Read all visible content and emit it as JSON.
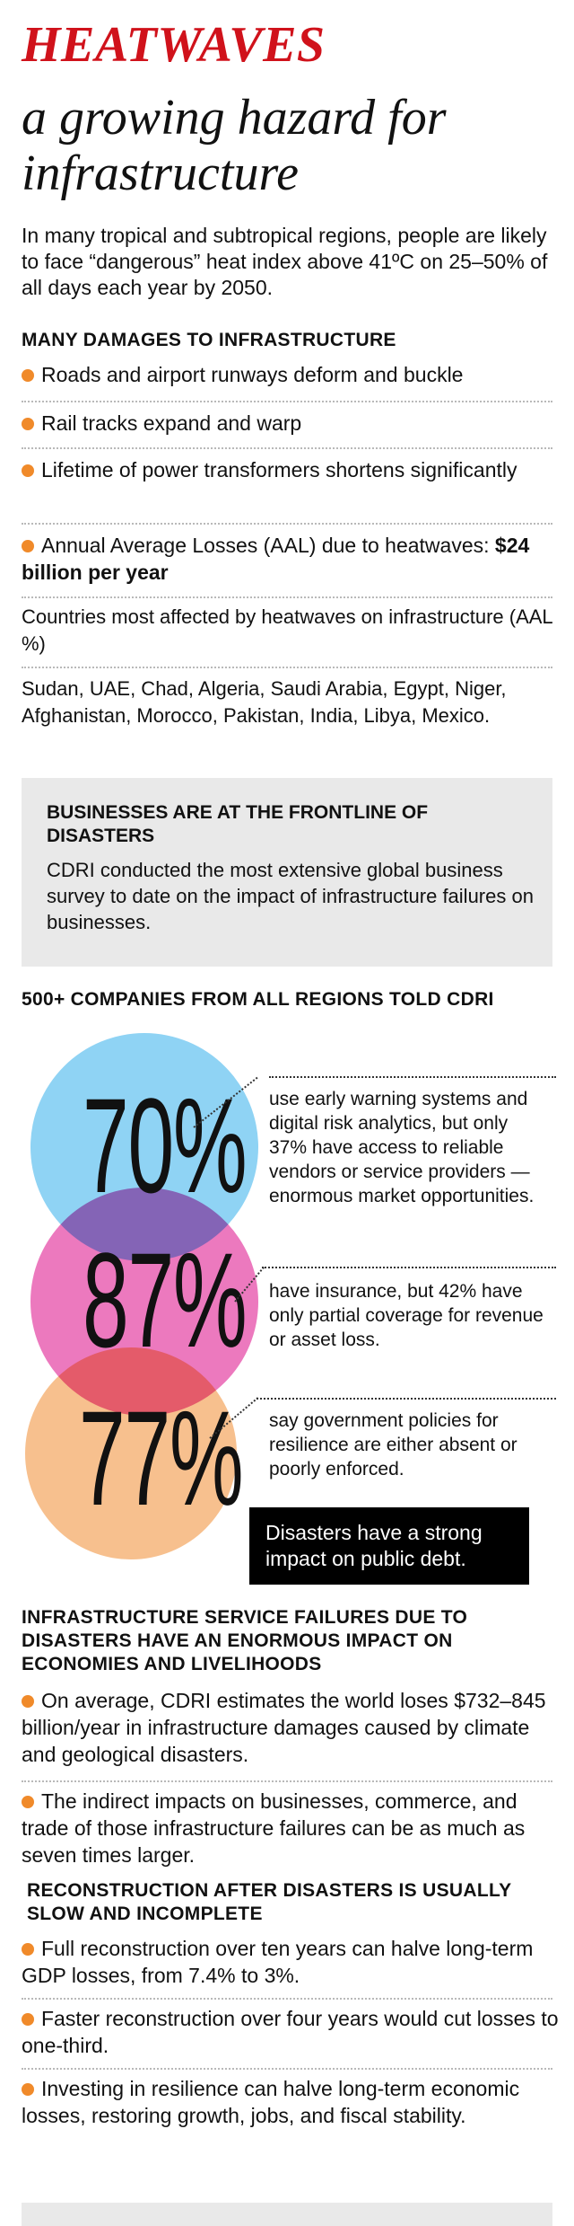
{
  "title": {
    "red": "HEATWAVES",
    "black": "a growing hazard for infrastructure"
  },
  "intro": "In many tropical and subtropical regions, people are likely to face “dangerous” heat index above 41ºC on 25–50% of all days each year by 2050.",
  "damages": {
    "heading": "MANY DAMAGES TO INFRASTRUCTURE",
    "items": [
      "Roads and airport runways deform and buckle",
      "Rail tracks expand and warp",
      "Lifetime of power transformers shortens significantly"
    ],
    "aal_text": "Annual Average Losses (AAL) due to heatwaves: ",
    "aal_value": "$24 billion per year",
    "countries_label": "Countries most affected by heatwaves on infrastructure (AAL %)",
    "countries": "Sudan, UAE, Chad, Algeria, Saudi Arabia, Egypt, Niger, Afghanistan, Morocco, Pakistan, India, Libya, Mexico."
  },
  "business_box": {
    "heading": "BUSINESSES ARE AT THE FRONTLINE OF DISASTERS",
    "text": "CDRI conducted the most extensive global business survey to date on the impact of infrastructure failures on businesses."
  },
  "survey": {
    "heading": "500+ COMPANIES FROM ALL REGIONS TOLD CDRI",
    "stats": [
      {
        "percent": "70%",
        "value": 70,
        "color": "#8fd3f4",
        "text": "use early warning systems and digital risk analytics, but only 37% have access to reliable vendors or service providers — enormous market opportunities."
      },
      {
        "percent": "87%",
        "value": 87,
        "color": "#ec79be",
        "text": "have insurance, but 42% have only partial coverage for revenue or asset loss."
      },
      {
        "percent": "77%",
        "value": 77,
        "color": "#f7c08e",
        "text": "say government policies for resilience are either absent or poorly enforced."
      }
    ],
    "callout": "Disasters have a strong impact on public debt."
  },
  "failures": {
    "heading": "INFRASTRUCTURE SERVICE FAILURES DUE TO DISASTERS HAVE AN ENORMOUS IMPACT ON ECONOMIES AND LIVELIHOODS",
    "items": [
      "On average, CDRI estimates the world loses $732–845 billion/year in infrastructure damages caused by climate and geological disasters.",
      "The indirect impacts on businesses, commerce, and trade of those infrastructure failures can be as much as seven times larger."
    ]
  },
  "reconstruction": {
    "heading": "RECONSTRUCTION AFTER DISASTERS IS USUALLY SLOW AND INCOMPLETE",
    "items": [
      "Full reconstruction over ten years can halve long-term GDP losses, from 7.4% to 3%.",
      "Faster reconstruction over four years would cut losses to one-third.",
      "Investing in resilience can halve long-term economic losses, restoring growth, jobs, and fiscal stability."
    ]
  },
  "colors": {
    "title_red": "#d0121b",
    "bullet_orange": "#f08a2a",
    "box_grey": "#e9e9e9"
  }
}
